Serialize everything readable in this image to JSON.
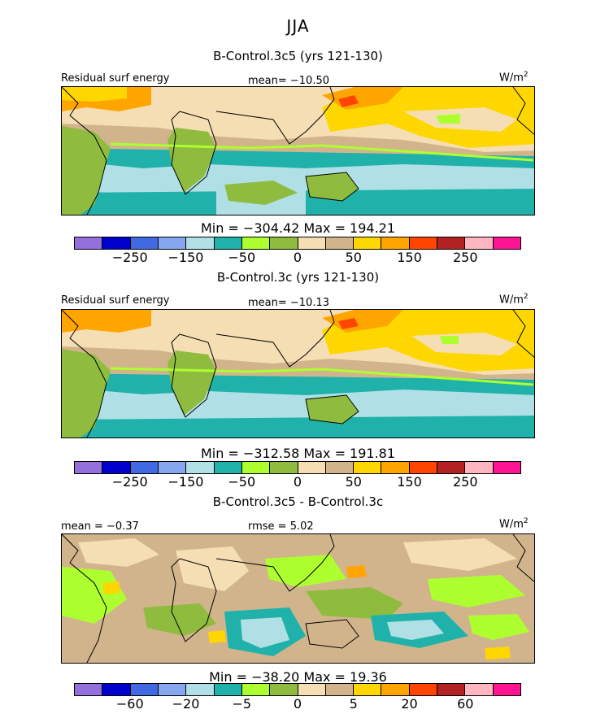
{
  "season": "JJA",
  "panels": [
    {
      "title": "B-Control.3c5 (yrs 121-130)",
      "left_label": "Residual surf energy",
      "center_label": "mean= −10.50",
      "units": "W/m",
      "units_sup": "2",
      "minmax": "Min = −304.42 Max = 194.21"
    },
    {
      "title": "B-Control.3c (yrs 121-130)",
      "left_label": "Residual surf energy",
      "center_label": "mean= −10.13",
      "units": "W/m",
      "units_sup": "2",
      "minmax": "Min = −312.58 Max = 191.81"
    },
    {
      "title": "B-Control.3c5 - B-Control.3c",
      "left_label": "mean =  −0.37",
      "center_label": "rmse =   5.02",
      "units": "W/m",
      "units_sup": "2",
      "minmax": "Min = −38.20 Max =   19.36"
    }
  ],
  "colorbar": {
    "colors": [
      "#9370db",
      "#0000cd",
      "#4169e1",
      "#87a6f0",
      "#b0e0e6",
      "#20b2aa",
      "#adff2f",
      "#8fbc3f",
      "#f5deb3",
      "#d2b48c",
      "#ffd700",
      "#ffa500",
      "#ff4500",
      "#b22222",
      "#ffb6c1",
      "#ff1493"
    ],
    "ticks_abs": [
      "−250",
      "−150",
      "−50",
      "0",
      "50",
      "150",
      "250"
    ],
    "ticks_diff": [
      "−60",
      "−20",
      "−5",
      "0",
      "5",
      "20",
      "60"
    ]
  },
  "chart_data": [
    {
      "type": "heatmap",
      "title": "B-Control.3c5 (yrs 121-130)",
      "variable": "Residual surf energy",
      "season": "JJA",
      "units": "W/m2",
      "mean": -10.5,
      "min": -304.42,
      "max": 194.21,
      "contour_levels": [
        -300,
        -250,
        -200,
        -150,
        -100,
        -50,
        -25,
        0,
        25,
        50,
        100,
        150,
        200,
        250,
        300
      ],
      "colorbar_labels": [
        -250,
        -150,
        -50,
        0,
        50,
        150,
        250
      ]
    },
    {
      "type": "heatmap",
      "title": "B-Control.3c (yrs 121-130)",
      "variable": "Residual surf energy",
      "season": "JJA",
      "units": "W/m2",
      "mean": -10.13,
      "min": -312.58,
      "max": 191.81,
      "contour_levels": [
        -300,
        -250,
        -200,
        -150,
        -100,
        -50,
        -25,
        0,
        25,
        50,
        100,
        150,
        200,
        250,
        300
      ],
      "colorbar_labels": [
        -250,
        -150,
        -50,
        0,
        50,
        150,
        250
      ]
    },
    {
      "type": "heatmap",
      "title": "B-Control.3c5 - B-Control.3c",
      "season": "JJA",
      "units": "W/m2",
      "mean": -0.37,
      "rmse": 5.02,
      "min": -38.2,
      "max": 19.36,
      "contour_levels": [
        -80,
        -60,
        -40,
        -20,
        -10,
        -5,
        -2,
        0,
        2,
        5,
        10,
        20,
        40,
        60,
        80
      ],
      "colorbar_labels": [
        -60,
        -20,
        -5,
        0,
        5,
        20,
        60
      ]
    }
  ]
}
